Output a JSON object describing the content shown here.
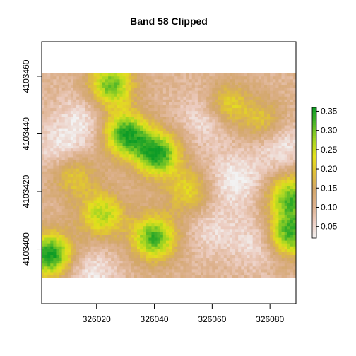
{
  "chart_data": {
    "type": "heatmap",
    "title": "Band 58 Clipped",
    "xlabel": "",
    "ylabel": "",
    "x_ticks": [
      326020,
      326040,
      326060,
      326080
    ],
    "y_ticks": [
      4103400,
      4103420,
      4103440,
      4103460
    ],
    "xlim": [
      326001,
      326089
    ],
    "ylim": [
      4103381,
      4103472
    ],
    "raster_extent": {
      "x": [
        326001,
        326089
      ],
      "y": [
        4103390,
        4103461
      ]
    },
    "legend": {
      "position": "right",
      "ticks": [
        0.05,
        0.1,
        0.15,
        0.2,
        0.25,
        0.3,
        0.35
      ],
      "tick_labels": [
        "0.05",
        "0.10",
        "0.15",
        "0.20",
        "0.25",
        "0.30",
        "0.35"
      ],
      "range": [
        0.02,
        0.36
      ]
    },
    "colormap": [
      "#f2f2f2",
      "#ecccc0",
      "#dcb08b",
      "#d3a769",
      "#dfbf3a",
      "#e4e01c",
      "#a6d622",
      "#50b628",
      "#0e9c26"
    ],
    "grid": false,
    "features": [
      {
        "kind": "high",
        "x": 326030,
        "y": 4103440,
        "value": 0.34
      },
      {
        "kind": "high",
        "x": 326041,
        "y": 4103433,
        "value": 0.35
      },
      {
        "kind": "high",
        "x": 326025,
        "y": 4103457,
        "value": 0.31
      },
      {
        "kind": "high",
        "x": 326040,
        "y": 4103404,
        "value": 0.33
      },
      {
        "kind": "high",
        "x": 326004,
        "y": 4103398,
        "value": 0.36
      },
      {
        "kind": "high",
        "x": 326022,
        "y": 4103412,
        "value": 0.27
      },
      {
        "kind": "high",
        "x": 326087,
        "y": 4103405,
        "value": 0.33
      },
      {
        "kind": "high",
        "x": 326087,
        "y": 4103418,
        "value": 0.31
      },
      {
        "kind": "high",
        "x": 326052,
        "y": 4103420,
        "value": 0.22
      },
      {
        "kind": "high",
        "x": 326065,
        "y": 4103450,
        "value": 0.24
      },
      {
        "kind": "high",
        "x": 326078,
        "y": 4103444,
        "value": 0.21
      },
      {
        "kind": "high",
        "x": 326012,
        "y": 4103426,
        "value": 0.22
      },
      {
        "kind": "low",
        "x": 326059,
        "y": 4103446,
        "value": 0.02
      },
      {
        "kind": "low",
        "x": 326083,
        "y": 4103437,
        "value": 0.02
      },
      {
        "kind": "low",
        "x": 326068,
        "y": 4103424,
        "value": 0.02
      },
      {
        "kind": "low",
        "x": 326008,
        "y": 4103434,
        "value": 0.03
      },
      {
        "kind": "low",
        "x": 326015,
        "y": 4103445,
        "value": 0.04
      },
      {
        "kind": "low",
        "x": 326018,
        "y": 4103391,
        "value": 0.03
      },
      {
        "kind": "low",
        "x": 326076,
        "y": 4103402,
        "value": 0.04
      },
      {
        "kind": "low",
        "x": 326060,
        "y": 4103407,
        "value": 0.05
      }
    ],
    "background_value": 0.1
  }
}
